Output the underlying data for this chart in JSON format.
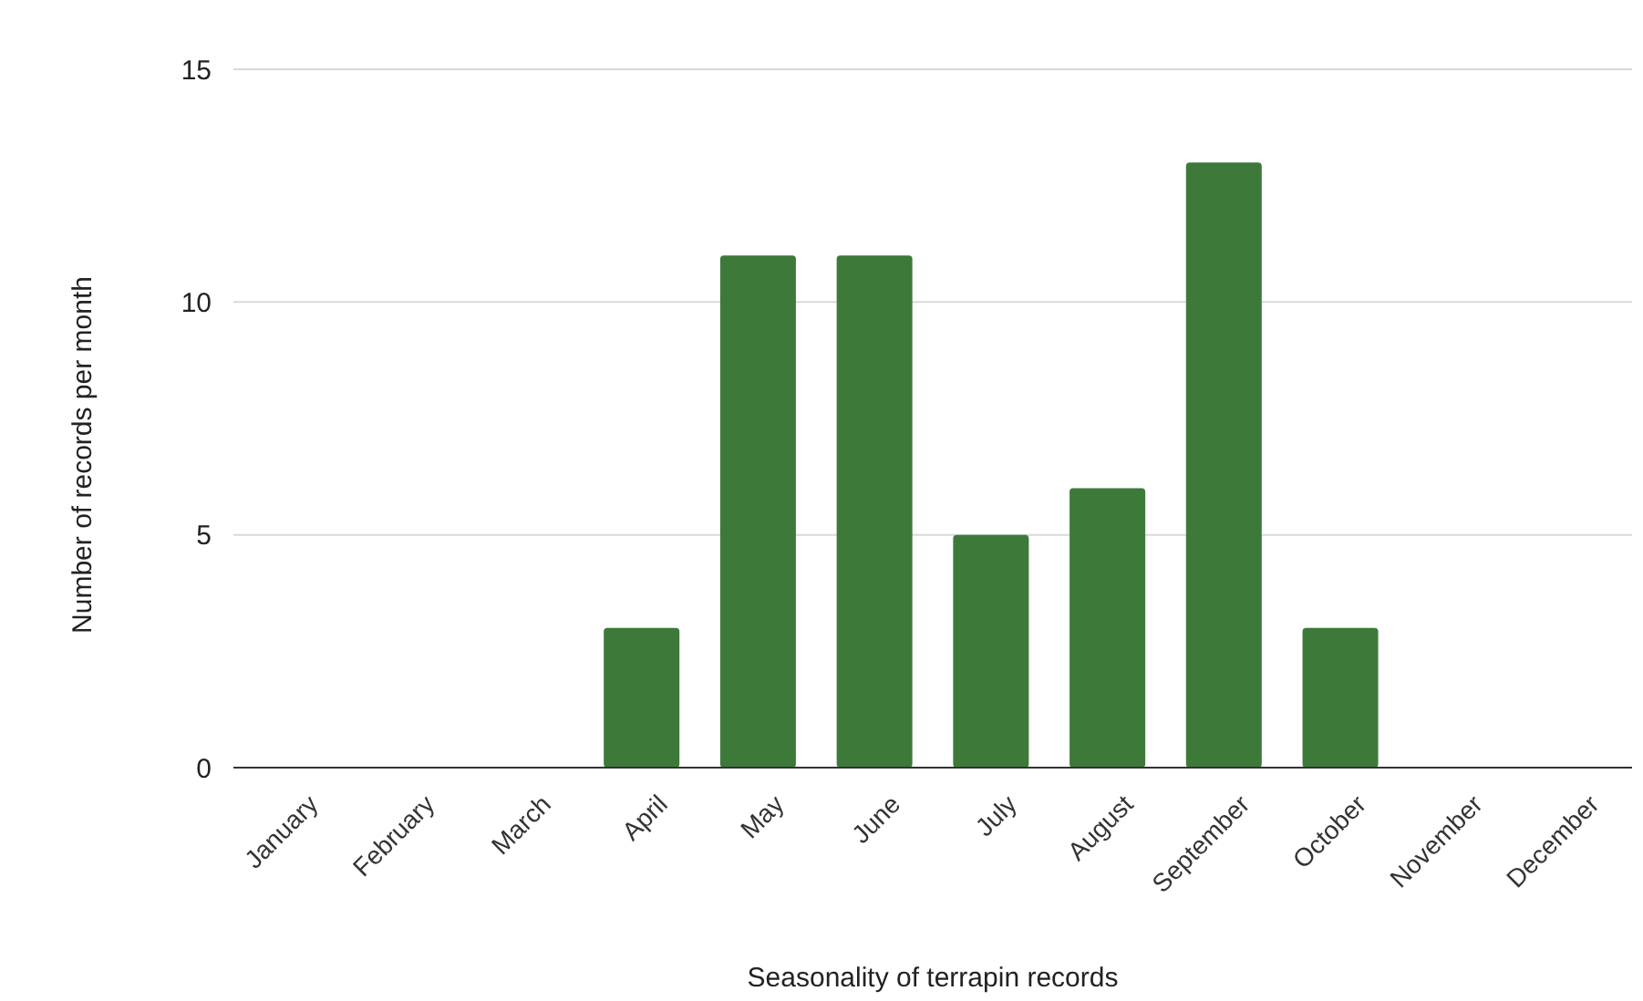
{
  "chart_data": {
    "type": "bar",
    "xlabel": "Seasonality of terrapin records",
    "ylabel": "Number of records per month",
    "categories": [
      "January",
      "February",
      "March",
      "April",
      "May",
      "June",
      "July",
      "August",
      "September",
      "October",
      "November",
      "December"
    ],
    "values": [
      0,
      0,
      0,
      3,
      11,
      11,
      5,
      6,
      13,
      3,
      0,
      0
    ],
    "color": "#3d7a3a",
    "ylim": [
      0,
      15
    ],
    "yticks": [
      0,
      5,
      10,
      15
    ],
    "grid": "y"
  }
}
